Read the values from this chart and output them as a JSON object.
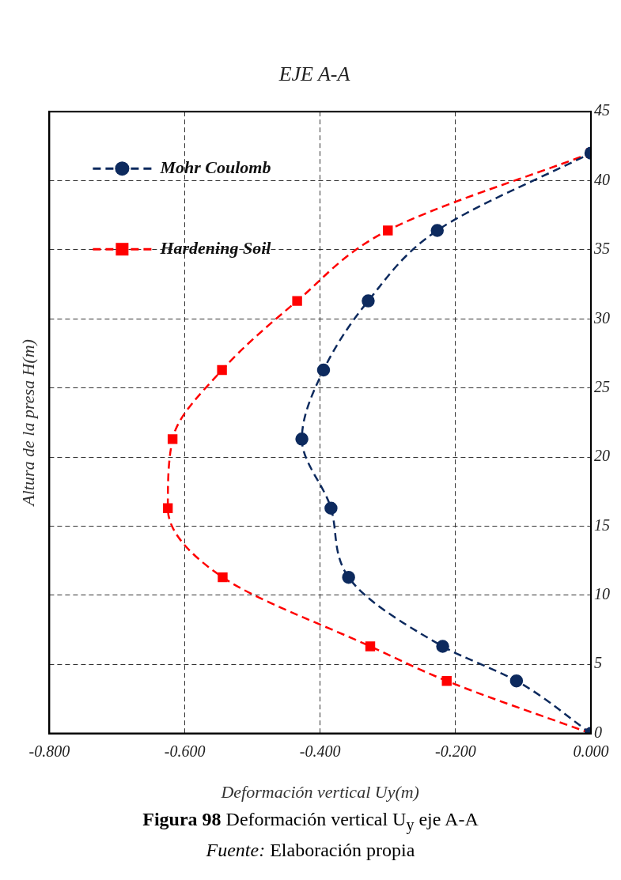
{
  "chart_data": {
    "type": "line",
    "title": "EJE A-A",
    "xlabel": "Deformación vertical Uy(m)",
    "ylabel": "Altura de la presa H(m)",
    "annotations": [
      "**Figura 98** Deformación vertical U$_{y}$ eje A-A",
      "*Fuente:* Elaboración propia"
    ],
    "xlim": [
      -0.8,
      0
    ],
    "xticks": [
      {
        "value": -0.8,
        "label": "-0.800"
      },
      {
        "value": -0.6,
        "label": "-0.600"
      },
      {
        "value": -0.4,
        "label": "-0.400"
      },
      {
        "value": -0.2,
        "label": "-0.200"
      },
      {
        "value": 0,
        "label": "0.000"
      }
    ],
    "ylim": [
      0,
      45
    ],
    "yticks": [
      0,
      5,
      10,
      15,
      20,
      25,
      30,
      35,
      40,
      45
    ],
    "grid": true,
    "legend": "top left",
    "series": [
      {
        "name": "Mohr Coulomb",
        "color": "#0d2a5e",
        "marker": "circle",
        "line_style": "dashed",
        "x": [
          0,
          -0.11,
          -0.219,
          -0.358,
          -0.384,
          -0.427,
          -0.395,
          -0.329,
          -0.227,
          0
        ],
        "values": [
          0,
          3.8,
          6.3,
          11.3,
          16.3,
          21.3,
          26.3,
          31.3,
          36.4,
          42
        ]
      },
      {
        "name": "Hardening Soil",
        "color": "#ff0000",
        "marker": "square",
        "line_style": "dashed",
        "x": [
          0,
          -0.213,
          -0.326,
          -0.544,
          -0.625,
          -0.618,
          -0.545,
          -0.434,
          -0.3,
          0
        ],
        "values": [
          0,
          3.8,
          6.3,
          11.3,
          16.3,
          21.3,
          26.3,
          31.3,
          36.4,
          42
        ]
      }
    ]
  }
}
